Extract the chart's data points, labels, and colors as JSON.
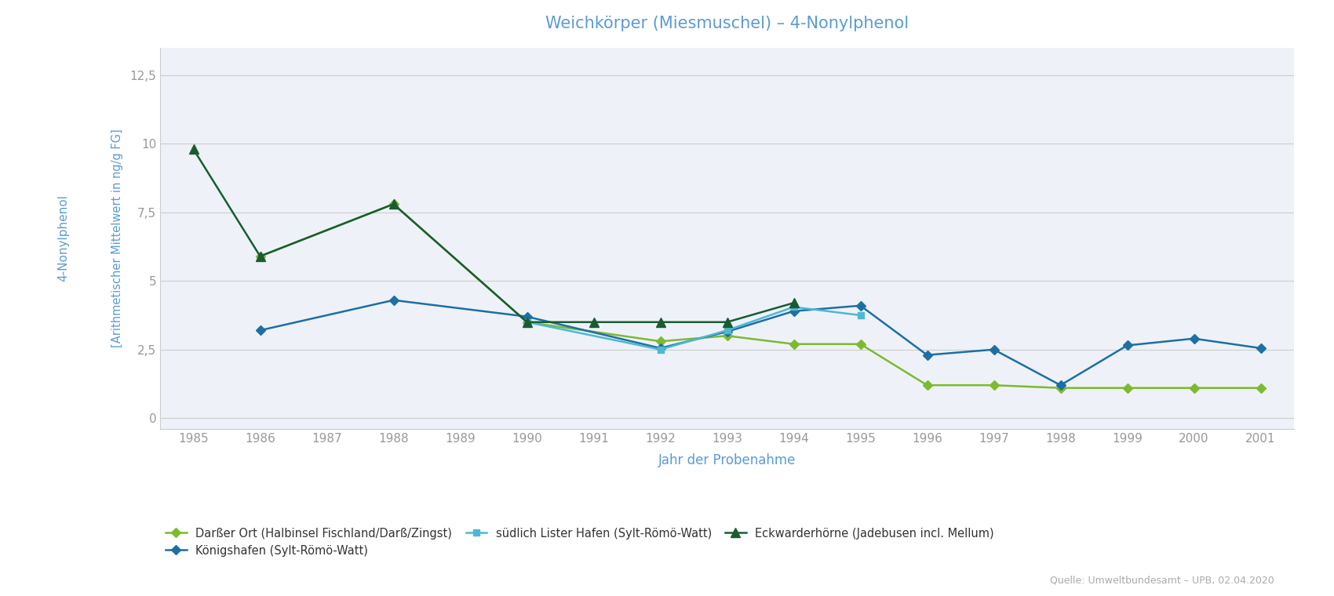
{
  "title": "Weichkörper (Miesmuschel) – 4-Nonylphenol",
  "xlabel": "Jahr der Probenahme",
  "ylabel_outer": "4-Nonylphenol",
  "ylabel_inner": "[Arithmetischer Mittelwert in ng/g FG]",
  "xlim": [
    1984.5,
    2001.5
  ],
  "ylim": [
    -0.4,
    13.5
  ],
  "yticks": [
    0,
    2.5,
    5,
    7.5,
    10,
    12.5
  ],
  "ytick_labels": [
    "0",
    "2,5",
    "5",
    "7,5",
    "10",
    "12,5"
  ],
  "xticks": [
    1985,
    1986,
    1987,
    1988,
    1989,
    1990,
    1991,
    1992,
    1993,
    1994,
    1995,
    1996,
    1997,
    1998,
    1999,
    2000,
    2001
  ],
  "series": [
    {
      "label": "Darßer Ort (Halbinsel Fischland/Darß/Zingst)",
      "color": "#7dba2e",
      "marker": "D",
      "markersize": 6,
      "linewidth": 1.8,
      "x": [
        1986,
        1988,
        1990,
        1992,
        1993,
        1994,
        1995,
        1996,
        1997,
        1998,
        1999,
        2000,
        2001
      ],
      "y": [
        5.9,
        7.8,
        3.5,
        2.8,
        3.0,
        2.7,
        2.7,
        1.2,
        1.2,
        1.1,
        1.1,
        1.1,
        1.1
      ]
    },
    {
      "label": "Königshafen (Sylt-Römö-Watt)",
      "color": "#1d6fa4",
      "marker": "D",
      "markersize": 6,
      "linewidth": 1.8,
      "x": [
        1986,
        1988,
        1990,
        1992,
        1993,
        1994,
        1995,
        1996,
        1997,
        1998,
        1999,
        2000,
        2001
      ],
      "y": [
        3.2,
        4.3,
        3.7,
        2.55,
        3.15,
        3.9,
        4.1,
        2.3,
        2.5,
        1.2,
        2.65,
        2.9,
        2.55
      ]
    },
    {
      "label": "südlich Lister Hafen (Sylt-Römö-Watt)",
      "color": "#4db8d4",
      "marker": "s",
      "markersize": 6,
      "linewidth": 1.8,
      "x": [
        1990,
        1992,
        1993,
        1994,
        1995
      ],
      "y": [
        3.5,
        2.5,
        3.2,
        4.05,
        3.75
      ]
    },
    {
      "label": "Eckwarderhörne (Jadebusen incl. Mellum)",
      "color": "#1a5c30",
      "marker": "^",
      "markersize": 8,
      "linewidth": 1.8,
      "x": [
        1985,
        1986,
        1988,
        1990,
        1991,
        1992,
        1993,
        1994
      ],
      "y": [
        9.8,
        5.9,
        7.8,
        3.5,
        3.5,
        3.5,
        3.5,
        4.2
      ]
    }
  ],
  "title_color": "#5b9bd5",
  "axis_label_color": "#5b9bd5",
  "tick_color": "#999999",
  "grid_color": "#cccccc",
  "background_color": "#ffffff",
  "plot_bg_color": "#eef2f8",
  "source_text": "Quelle: Umweltbundesamt – UPB, 02.04.2020"
}
